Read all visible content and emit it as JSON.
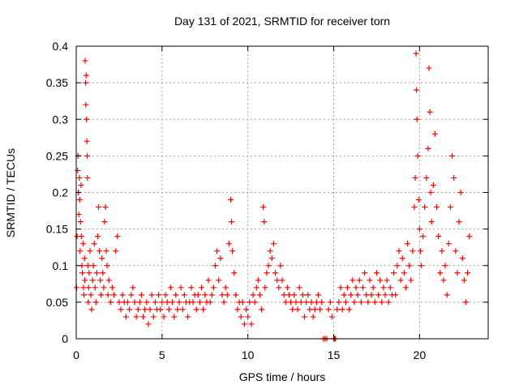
{
  "chart_data": {
    "type": "scatter",
    "title": "Day 131 of 2021, SRMTID for receiver torn",
    "xlabel": "GPS time / hours",
    "ylabel": "SRMTID / TECUs",
    "xlim": [
      0,
      24
    ],
    "ylim": [
      0,
      0.4
    ],
    "xticks": [
      0,
      5,
      10,
      15,
      20
    ],
    "xtick_labels": [
      "0",
      "5",
      "10",
      "15",
      "20"
    ],
    "yticks": [
      0,
      0.05,
      0.1,
      0.15,
      0.2,
      0.25,
      0.3,
      0.35,
      0.4
    ],
    "ytick_labels": [
      "0",
      "0.05",
      "0.1",
      "0.15",
      "0.2",
      "0.25",
      "0.3",
      "0.35",
      "0.4"
    ],
    "grid": true,
    "marker": "plus",
    "color": "#ff0000",
    "series": [
      {
        "name": "SRMTID",
        "points": [
          [
            0.02,
            0.07
          ],
          [
            0.05,
            0.14
          ],
          [
            0.08,
            0.23
          ],
          [
            0.1,
            0.25
          ],
          [
            0.12,
            0.2
          ],
          [
            0.15,
            0.17
          ],
          [
            0.18,
            0.22
          ],
          [
            0.2,
            0.19
          ],
          [
            0.22,
            0.12
          ],
          [
            0.25,
            0.16
          ],
          [
            0.28,
            0.21
          ],
          [
            0.3,
            0.14
          ],
          [
            0.33,
            0.1
          ],
          [
            0.36,
            0.09
          ],
          [
            0.4,
            0.13
          ],
          [
            0.42,
            0.07
          ],
          [
            0.45,
            0.06
          ],
          [
            0.48,
            0.11
          ],
          [
            0.5,
            0.08
          ],
          [
            0.52,
            0.38
          ],
          [
            0.55,
            0.35
          ],
          [
            0.56,
            0.32
          ],
          [
            0.58,
            0.36
          ],
          [
            0.6,
            0.3
          ],
          [
            0.62,
            0.27
          ],
          [
            0.64,
            0.25
          ],
          [
            0.65,
            0.22
          ],
          [
            0.68,
            0.1
          ],
          [
            0.7,
            0.05
          ],
          [
            0.72,
            0.07
          ],
          [
            0.75,
            0.09
          ],
          [
            0.8,
            0.12
          ],
          [
            0.85,
            0.06
          ],
          [
            0.9,
            0.04
          ],
          [
            0.95,
            0.08
          ],
          [
            1.0,
            0.1
          ],
          [
            1.05,
            0.13
          ],
          [
            1.1,
            0.07
          ],
          [
            1.15,
            0.05
          ],
          [
            1.2,
            0.09
          ],
          [
            1.25,
            0.14
          ],
          [
            1.3,
            0.18
          ],
          [
            1.35,
            0.12
          ],
          [
            1.4,
            0.08
          ],
          [
            1.45,
            0.06
          ],
          [
            1.5,
            0.11
          ],
          [
            1.55,
            0.09
          ],
          [
            1.6,
            0.07
          ],
          [
            1.65,
            0.16
          ],
          [
            1.7,
            0.18
          ],
          [
            1.75,
            0.12
          ],
          [
            1.8,
            0.1
          ],
          [
            1.85,
            0.06
          ],
          [
            1.9,
            0.08
          ],
          [
            2.0,
            0.05
          ],
          [
            2.1,
            0.07
          ],
          [
            2.2,
            0.06
          ],
          [
            2.3,
            0.12
          ],
          [
            2.4,
            0.14
          ],
          [
            2.5,
            0.05
          ],
          [
            2.6,
            0.04
          ],
          [
            2.7,
            0.06
          ],
          [
            2.8,
            0.05
          ],
          [
            2.9,
            0.03
          ],
          [
            3.0,
            0.05
          ],
          [
            3.1,
            0.04
          ],
          [
            3.2,
            0.06
          ],
          [
            3.3,
            0.07
          ],
          [
            3.4,
            0.05
          ],
          [
            3.5,
            0.03
          ],
          [
            3.6,
            0.04
          ],
          [
            3.7,
            0.05
          ],
          [
            3.8,
            0.06
          ],
          [
            3.9,
            0.03
          ],
          [
            4.0,
            0.04
          ],
          [
            4.1,
            0.05
          ],
          [
            4.2,
            0.02
          ],
          [
            4.3,
            0.04
          ],
          [
            4.4,
            0.06
          ],
          [
            4.5,
            0.03
          ],
          [
            4.6,
            0.05
          ],
          [
            4.7,
            0.04
          ],
          [
            4.8,
            0.06
          ],
          [
            4.9,
            0.04
          ],
          [
            5.0,
            0.05
          ],
          [
            5.1,
            0.03
          ],
          [
            5.2,
            0.06
          ],
          [
            5.3,
            0.05
          ],
          [
            5.4,
            0.04
          ],
          [
            5.5,
            0.07
          ],
          [
            5.6,
            0.05
          ],
          [
            5.7,
            0.03
          ],
          [
            5.8,
            0.06
          ],
          [
            5.9,
            0.04
          ],
          [
            6.0,
            0.05
          ],
          [
            6.1,
            0.07
          ],
          [
            6.2,
            0.04
          ],
          [
            6.3,
            0.06
          ],
          [
            6.4,
            0.05
          ],
          [
            6.5,
            0.03
          ],
          [
            6.6,
            0.05
          ],
          [
            6.7,
            0.07
          ],
          [
            6.8,
            0.05
          ],
          [
            6.9,
            0.06
          ],
          [
            7.0,
            0.04
          ],
          [
            7.1,
            0.06
          ],
          [
            7.2,
            0.05
          ],
          [
            7.3,
            0.07
          ],
          [
            7.4,
            0.04
          ],
          [
            7.5,
            0.06
          ],
          [
            7.6,
            0.05
          ],
          [
            7.7,
            0.08
          ],
          [
            7.8,
            0.05
          ],
          [
            7.9,
            0.06
          ],
          [
            8.0,
            0.07
          ],
          [
            8.1,
            0.1
          ],
          [
            8.2,
            0.12
          ],
          [
            8.3,
            0.08
          ],
          [
            8.4,
            0.11
          ],
          [
            8.5,
            0.06
          ],
          [
            8.6,
            0.05
          ],
          [
            8.7,
            0.07
          ],
          [
            8.8,
            0.06
          ],
          [
            8.9,
            0.13
          ],
          [
            9.0,
            0.19
          ],
          [
            9.05,
            0.16
          ],
          [
            9.1,
            0.12
          ],
          [
            9.2,
            0.09
          ],
          [
            9.3,
            0.06
          ],
          [
            9.4,
            0.04
          ],
          [
            9.5,
            0.05
          ],
          [
            9.6,
            0.03
          ],
          [
            9.7,
            0.05
          ],
          [
            9.8,
            0.02
          ],
          [
            9.9,
            0.04
          ],
          [
            10.0,
            0.03
          ],
          [
            10.1,
            0.05
          ],
          [
            10.2,
            0.02
          ],
          [
            10.3,
            0.06
          ],
          [
            10.4,
            0.05
          ],
          [
            10.5,
            0.07
          ],
          [
            10.6,
            0.08
          ],
          [
            10.7,
            0.06
          ],
          [
            10.8,
            0.04
          ],
          [
            10.9,
            0.18
          ],
          [
            10.95,
            0.16
          ],
          [
            11.0,
            0.07
          ],
          [
            11.1,
            0.09
          ],
          [
            11.2,
            0.1
          ],
          [
            11.3,
            0.12
          ],
          [
            11.4,
            0.11
          ],
          [
            11.5,
            0.13
          ],
          [
            11.6,
            0.09
          ],
          [
            11.7,
            0.08
          ],
          [
            11.8,
            0.07
          ],
          [
            11.9,
            0.1
          ],
          [
            12.0,
            0.08
          ],
          [
            12.1,
            0.06
          ],
          [
            12.2,
            0.05
          ],
          [
            12.3,
            0.07
          ],
          [
            12.4,
            0.06
          ],
          [
            12.5,
            0.05
          ],
          [
            12.6,
            0.04
          ],
          [
            12.7,
            0.06
          ],
          [
            12.8,
            0.05
          ],
          [
            12.9,
            0.04
          ],
          [
            13.0,
            0.07
          ],
          [
            13.1,
            0.05
          ],
          [
            13.2,
            0.06
          ],
          [
            13.3,
            0.03
          ],
          [
            13.4,
            0.05
          ],
          [
            13.5,
            0.06
          ],
          [
            13.6,
            0.04
          ],
          [
            13.7,
            0.05
          ],
          [
            13.8,
            0.03
          ],
          [
            13.9,
            0.04
          ],
          [
            14.0,
            0.05
          ],
          [
            14.1,
            0.06
          ],
          [
            14.2,
            0.04
          ],
          [
            14.3,
            0.05
          ],
          [
            14.4,
            0.0
          ],
          [
            14.5,
            0.0
          ],
          [
            14.6,
            0.0
          ],
          [
            14.7,
            0.04
          ],
          [
            14.8,
            0.05
          ],
          [
            14.9,
            0.03
          ],
          [
            15.0,
            0.0
          ],
          [
            15.05,
            0.0
          ],
          [
            15.1,
            0.0
          ],
          [
            15.2,
            0.04
          ],
          [
            15.3,
            0.05
          ],
          [
            15.4,
            0.07
          ],
          [
            15.5,
            0.04
          ],
          [
            15.6,
            0.06
          ],
          [
            15.7,
            0.05
          ],
          [
            15.8,
            0.07
          ],
          [
            15.9,
            0.04
          ],
          [
            16.0,
            0.06
          ],
          [
            16.1,
            0.08
          ],
          [
            16.2,
            0.05
          ],
          [
            16.3,
            0.07
          ],
          [
            16.4,
            0.06
          ],
          [
            16.5,
            0.08
          ],
          [
            16.6,
            0.05
          ],
          [
            16.7,
            0.07
          ],
          [
            16.8,
            0.09
          ],
          [
            16.9,
            0.06
          ],
          [
            17.0,
            0.05
          ],
          [
            17.1,
            0.08
          ],
          [
            17.2,
            0.06
          ],
          [
            17.3,
            0.07
          ],
          [
            17.4,
            0.05
          ],
          [
            17.5,
            0.09
          ],
          [
            17.6,
            0.06
          ],
          [
            17.7,
            0.08
          ],
          [
            17.8,
            0.05
          ],
          [
            17.9,
            0.07
          ],
          [
            18.0,
            0.06
          ],
          [
            18.1,
            0.08
          ],
          [
            18.2,
            0.05
          ],
          [
            18.3,
            0.07
          ],
          [
            18.4,
            0.06
          ],
          [
            18.5,
            0.09
          ],
          [
            18.6,
            0.06
          ],
          [
            18.7,
            0.1
          ],
          [
            18.8,
            0.12
          ],
          [
            18.9,
            0.08
          ],
          [
            19.0,
            0.11
          ],
          [
            19.1,
            0.09
          ],
          [
            19.2,
            0.07
          ],
          [
            19.3,
            0.13
          ],
          [
            19.4,
            0.1
          ],
          [
            19.5,
            0.08
          ],
          [
            19.6,
            0.12
          ],
          [
            19.7,
            0.18
          ],
          [
            19.75,
            0.22
          ],
          [
            19.8,
            0.39
          ],
          [
            19.82,
            0.34
          ],
          [
            19.85,
            0.3
          ],
          [
            19.9,
            0.25
          ],
          [
            19.95,
            0.19
          ],
          [
            20.0,
            0.15
          ],
          [
            20.05,
            0.12
          ],
          [
            20.1,
            0.1
          ],
          [
            20.2,
            0.14
          ],
          [
            20.3,
            0.18
          ],
          [
            20.4,
            0.22
          ],
          [
            20.5,
            0.26
          ],
          [
            20.55,
            0.37
          ],
          [
            20.6,
            0.31
          ],
          [
            20.65,
            0.2
          ],
          [
            20.7,
            0.16
          ],
          [
            20.8,
            0.21
          ],
          [
            20.9,
            0.28
          ],
          [
            21.0,
            0.18
          ],
          [
            21.1,
            0.14
          ],
          [
            21.2,
            0.09
          ],
          [
            21.3,
            0.12
          ],
          [
            21.4,
            0.08
          ],
          [
            21.5,
            0.1
          ],
          [
            21.6,
            0.06
          ],
          [
            21.7,
            0.13
          ],
          [
            21.8,
            0.18
          ],
          [
            21.9,
            0.25
          ],
          [
            22.0,
            0.22
          ],
          [
            22.1,
            0.12
          ],
          [
            22.2,
            0.09
          ],
          [
            22.3,
            0.16
          ],
          [
            22.4,
            0.2
          ],
          [
            22.5,
            0.11
          ],
          [
            22.6,
            0.08
          ],
          [
            22.7,
            0.05
          ],
          [
            22.8,
            0.09
          ],
          [
            22.9,
            0.14
          ]
        ]
      }
    ]
  }
}
